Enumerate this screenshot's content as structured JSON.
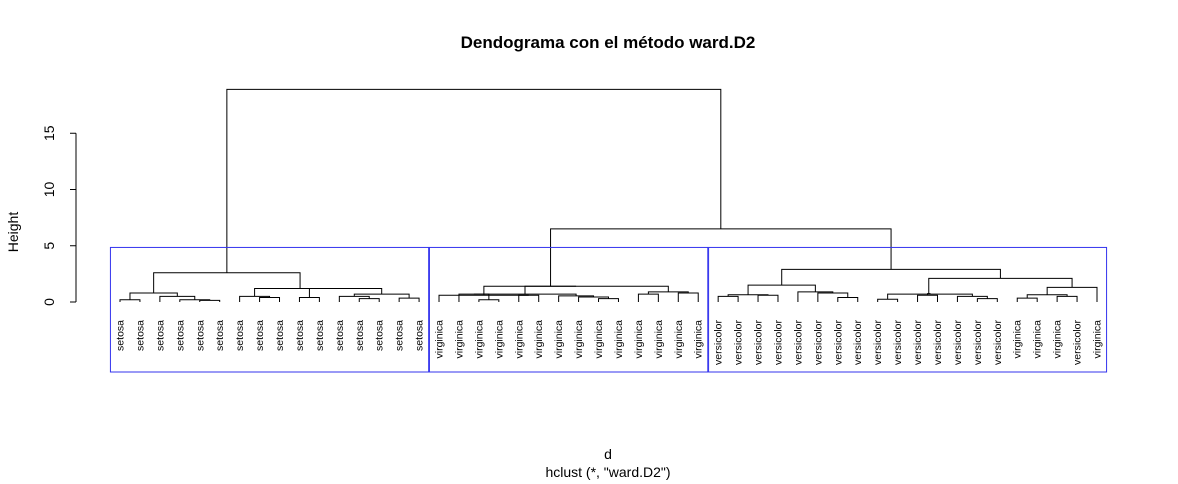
{
  "chart_data": {
    "type": "dendrogram",
    "title": "Dendograma con el método  ward.D2",
    "ylabel": "Height",
    "xlabel": "d",
    "sub": "hclust (*, \"ward.D2\")",
    "ylim": [
      0,
      19
    ],
    "yticks": [
      0,
      5,
      10,
      15
    ],
    "leaves": [
      "setosa",
      "setosa",
      "setosa",
      "setosa",
      "setosa",
      "setosa",
      "setosa",
      "setosa",
      "setosa",
      "setosa",
      "setosa",
      "setosa",
      "setosa",
      "setosa",
      "setosa",
      "setosa",
      "virginica",
      "virginica",
      "virginica",
      "virginica",
      "virginica",
      "virginica",
      "virginica",
      "virginica",
      "virginica",
      "virginica",
      "virginica",
      "virginica",
      "virginica",
      "virginica",
      "versicolor",
      "versicolor",
      "versicolor",
      "versicolor",
      "versicolor",
      "versicolor",
      "versicolor",
      "versicolor",
      "versicolor",
      "versicolor",
      "versicolor",
      "versicolor",
      "versicolor",
      "versicolor",
      "versicolor",
      "virginica",
      "virginica",
      "virginica",
      "versicolor",
      "virginica"
    ],
    "merges": [
      [
        0,
        1,
        0.2
      ],
      [
        4,
        5,
        0.15
      ],
      [
        3,
        "m1",
        0.2
      ],
      [
        2,
        "m2",
        0.5
      ],
      [
        "m0",
        "m3",
        0.8
      ],
      [
        7,
        8,
        0.4
      ],
      [
        6,
        "m5",
        0.5
      ],
      [
        9,
        10,
        0.4
      ],
      [
        12,
        13,
        0.3
      ],
      [
        14,
        15,
        0.35
      ],
      [
        11,
        "m8",
        0.5
      ],
      [
        "m10",
        "m9",
        0.7
      ],
      [
        "m7",
        "m11",
        1.2
      ],
      [
        "m6",
        "m12",
        1.2
      ],
      [
        "m4",
        "m13",
        2.6
      ],
      [
        20,
        21,
        0.6
      ],
      [
        26,
        27,
        0.7
      ],
      [
        28,
        29,
        0.8
      ],
      [
        18,
        19,
        0.2
      ],
      [
        24,
        25,
        0.3
      ],
      [
        "m19",
        23,
        0.45
      ],
      [
        "m20",
        22,
        0.55
      ],
      [
        17,
        "m18",
        0.7
      ],
      [
        "m22",
        "m21",
        0.7
      ],
      [
        16,
        "m15",
        0.6
      ],
      [
        "m16",
        "m17",
        0.9
      ],
      [
        "m24",
        "m25",
        1.4
      ],
      [
        "m23",
        "m26",
        1.4
      ],
      [
        30,
        31,
        0.5
      ],
      [
        32,
        33,
        0.6
      ],
      [
        36,
        37,
        0.4
      ],
      [
        38,
        39,
        0.25
      ],
      [
        43,
        44,
        0.3
      ],
      [
        42,
        "m32",
        0.5
      ],
      [
        "m31",
        "m33",
        0.7
      ],
      [
        35,
        "m30",
        0.8
      ],
      [
        34,
        "m35",
        0.9
      ],
      [
        40,
        41,
        0.6
      ],
      [
        "m37",
        "m34",
        0.75
      ],
      [
        "m28",
        "m29",
        0.65
      ],
      [
        "m39",
        "m36",
        1.5
      ],
      [
        45,
        46,
        0.35
      ],
      [
        47,
        48,
        0.5
      ],
      [
        "m41",
        "m42",
        0.65
      ],
      [
        "m43",
        49,
        1.3
      ],
      [
        "m38",
        "m44",
        2.1
      ],
      [
        "m40",
        "m45",
        2.9
      ],
      [
        "m27",
        "m46",
        4.5
      ],
      [
        "m47",
        "m14",
        4.5
      ],
      [
        "m14",
        "m47",
        6.5
      ],
      [
        "m14",
        "m47",
        18.9
      ]
    ],
    "clusters": [
      {
        "from": 0,
        "to": 15,
        "color": "#3333ee"
      },
      {
        "from": 16,
        "to": 29,
        "color": "#3333ee"
      },
      {
        "from": 30,
        "to": 49,
        "color": "#3333ee"
      }
    ]
  }
}
